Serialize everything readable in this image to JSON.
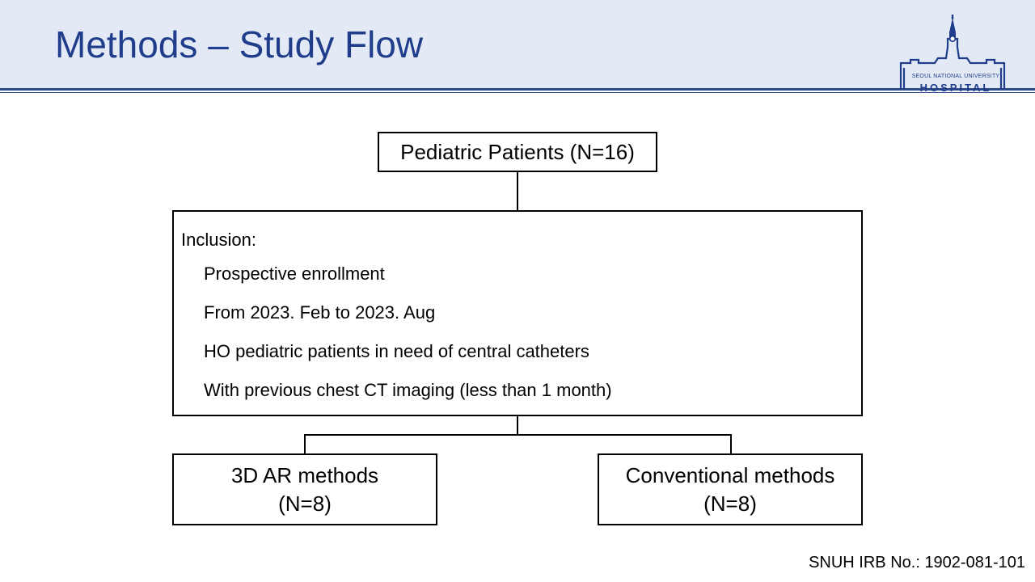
{
  "header": {
    "title": "Methods – Study Flow",
    "logo": {
      "name_line": "SEOUL NATIONAL UNIVERSITY",
      "word": "HOSPITAL",
      "icon": "hospital-building-icon"
    }
  },
  "flow": {
    "top_box": "Pediatric Patients (N=16)",
    "inclusion": {
      "heading": "Inclusion:",
      "items": [
        "Prospective enrollment",
        "From 2023. Feb to 2023. Aug",
        "HO pediatric patients in need of central catheters",
        "With previous chest CT imaging (less than 1 month)"
      ]
    },
    "arms": [
      {
        "label": "3D AR methods",
        "count": "(N=8)"
      },
      {
        "label": "Conventional methods",
        "count": "(N=8)"
      }
    ]
  },
  "footer": {
    "irb": "SNUH IRB No.: 1902-081-101"
  },
  "colors": {
    "title": "#1f3d8a",
    "header_bg": "#e3eaf6",
    "rule": "#2b4a8c"
  }
}
